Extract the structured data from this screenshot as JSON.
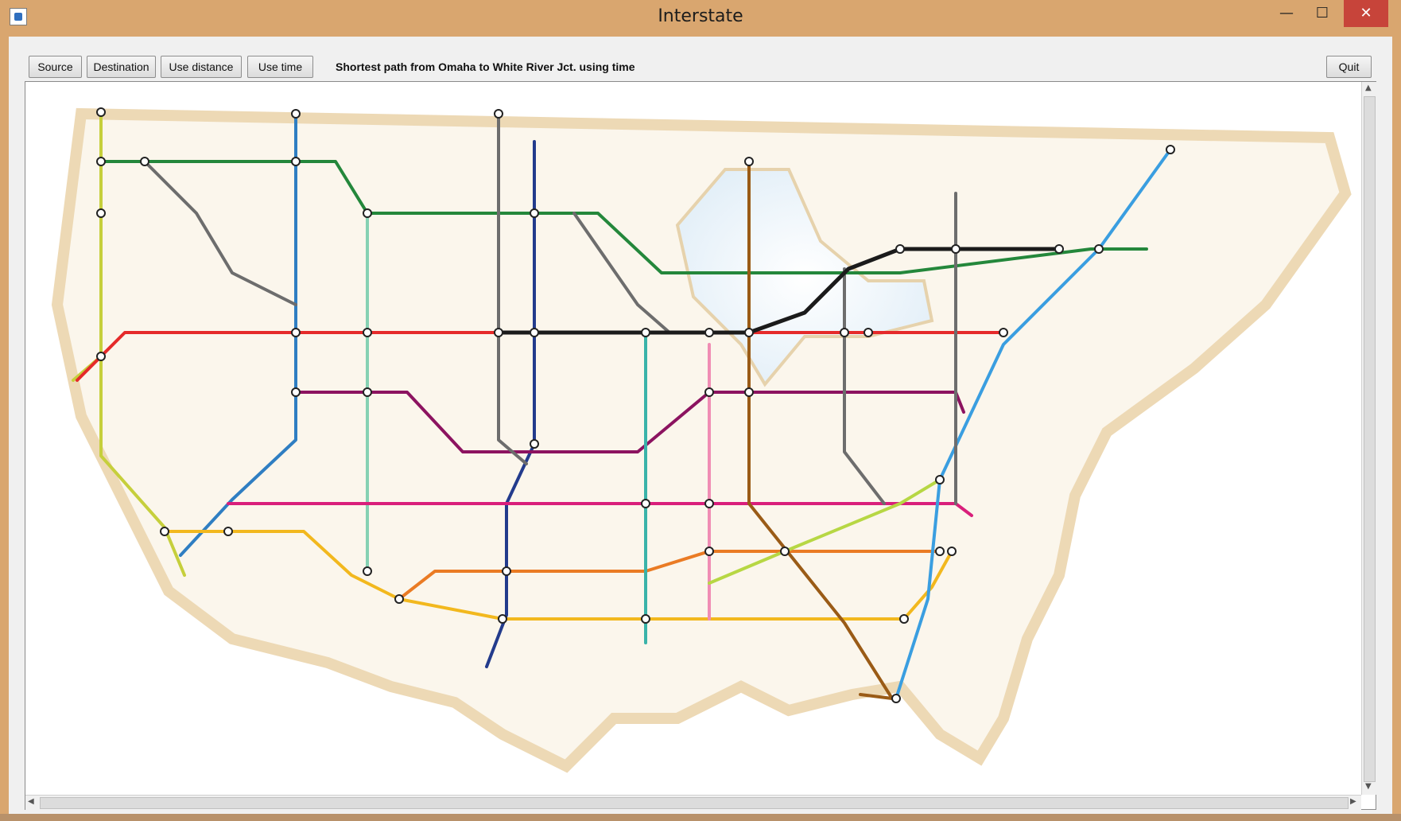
{
  "window": {
    "title": "Interstate",
    "controls": {
      "minimize": "—",
      "maximize": "☐",
      "close": "✕"
    }
  },
  "toolbar": {
    "source_label": "Source",
    "destination_label": "Destination",
    "use_distance_label": "Use distance",
    "use_time_label": "Use time",
    "status": "Shortest path from Omaha to White River Jct. using time",
    "quit_label": "Quit"
  },
  "map": {
    "colors": {
      "i5": "#c6cf3c",
      "i10": "#f2b81e",
      "i15": "#2f7ec2",
      "i20": "#ea7b24",
      "i25": "#86d1b3",
      "i35": "#233b8c",
      "i40": "#d91f7b",
      "i55": "#3ab3a9",
      "i65": "#f08db4",
      "i70": "#8c1360",
      "i75": "#9a5b16",
      "i80": "#e52a2a",
      "i85": "#b7d744",
      "i90": "#24873b",
      "i95": "#3a9ee0",
      "other": "#6d6d6d",
      "path": "#1b1b1b"
    }
  }
}
